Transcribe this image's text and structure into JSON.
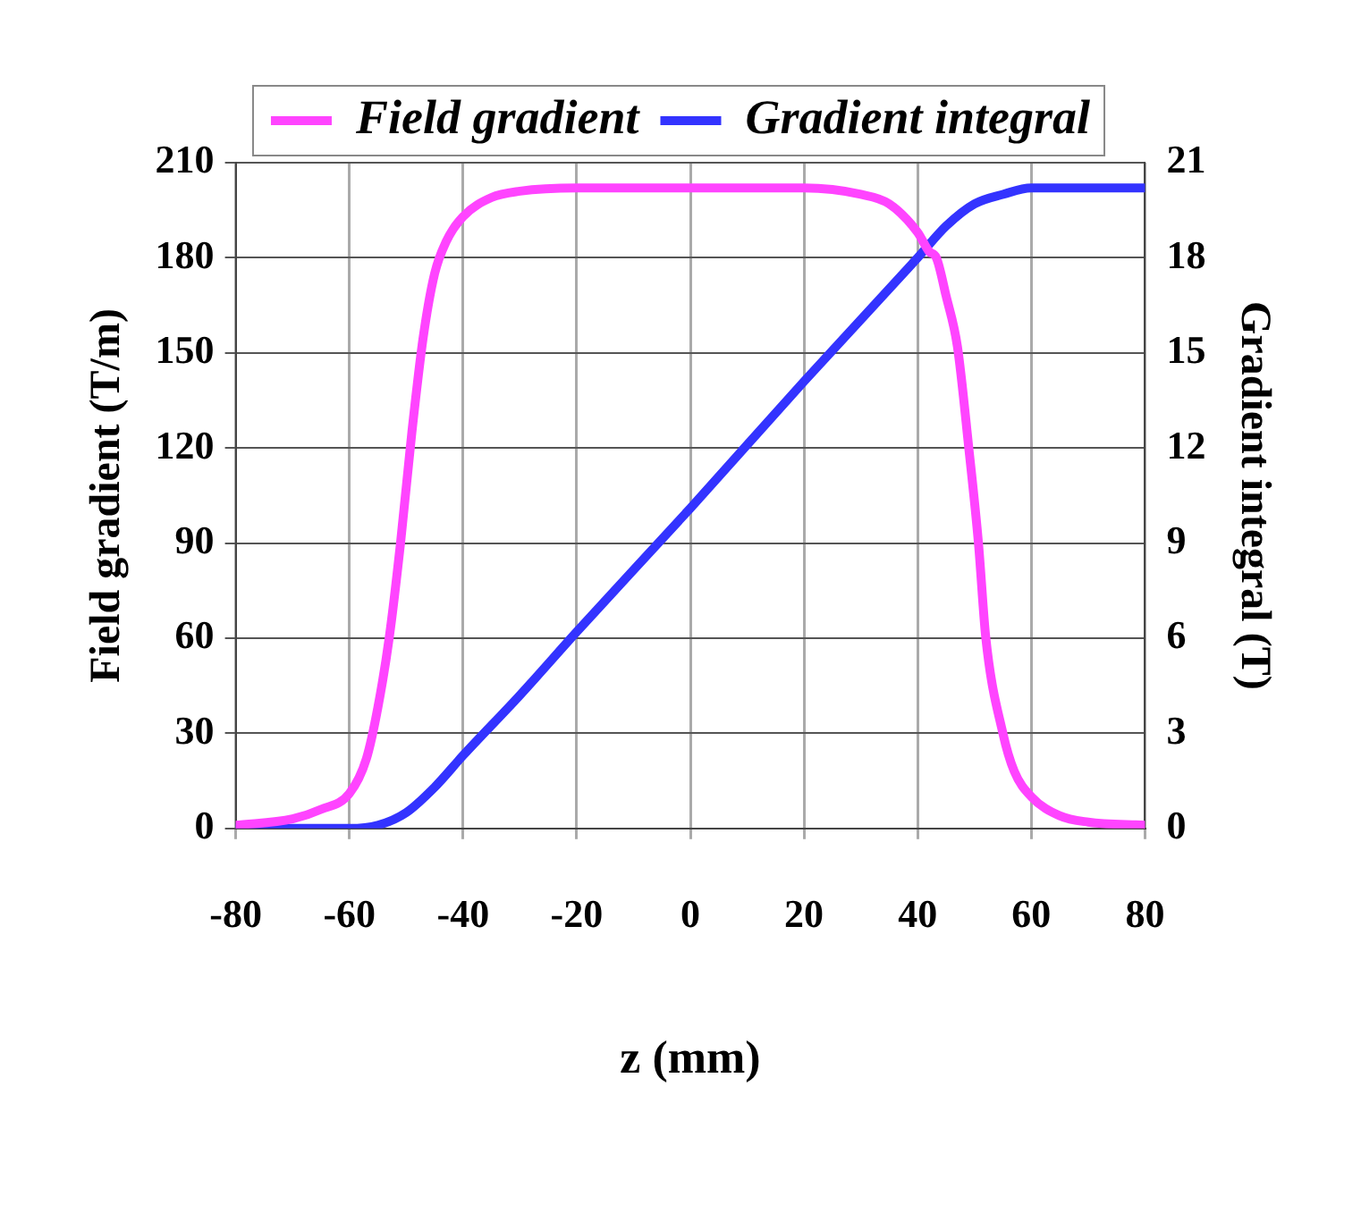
{
  "chart_data": {
    "type": "line",
    "xlabel": "z (mm)",
    "ylabel": "Field gradient (T/m)",
    "y2label": "Gradient integral (T)",
    "xlim": [
      -80,
      80
    ],
    "xticks": [
      -80,
      -60,
      -40,
      -20,
      0,
      20,
      40,
      60,
      80
    ],
    "ylim": [
      0,
      210
    ],
    "yticks": [
      0,
      30,
      60,
      90,
      120,
      150,
      180,
      210
    ],
    "y2lim": [
      0,
      21
    ],
    "y2ticks": [
      0,
      3,
      6,
      9,
      12,
      15,
      18,
      21
    ],
    "grid": true,
    "legend": "top",
    "marker": "none",
    "line_style": "solid",
    "series": [
      {
        "name": "Field gradient",
        "color": "#ff44ff",
        "x": [
          -80,
          -70,
          -65,
          -60,
          -57,
          -55,
          -53,
          -51,
          -49,
          -47,
          -45,
          -43,
          -40,
          -35,
          -30,
          -20,
          0,
          20,
          30,
          35,
          40,
          42,
          43.3,
          45,
          47,
          49,
          50.7,
          52,
          55,
          57,
          60,
          65,
          70,
          80
        ],
        "values": [
          1,
          3,
          6,
          11,
          22,
          38,
          60,
          90,
          125,
          155,
          175,
          185,
          193,
          199,
          201,
          202,
          202,
          202,
          200,
          197,
          188,
          182,
          180,
          168,
          152,
          120,
          90,
          60,
          30,
          18,
          10,
          4,
          2,
          1
        ]
      },
      {
        "name": "Gradient integral",
        "color": "#3333ff",
        "axis": "y2",
        "x": [
          -80,
          -60,
          -55,
          -50,
          -45,
          -40,
          -30,
          -20,
          0,
          20,
          40,
          45,
          50,
          55,
          60,
          80
        ],
        "values": [
          0,
          0,
          0.1,
          0.5,
          1.3,
          2.3,
          4.2,
          6.2,
          10.1,
          14.1,
          18.0,
          19.0,
          19.7,
          20.0,
          20.2,
          20.2
        ]
      }
    ]
  }
}
